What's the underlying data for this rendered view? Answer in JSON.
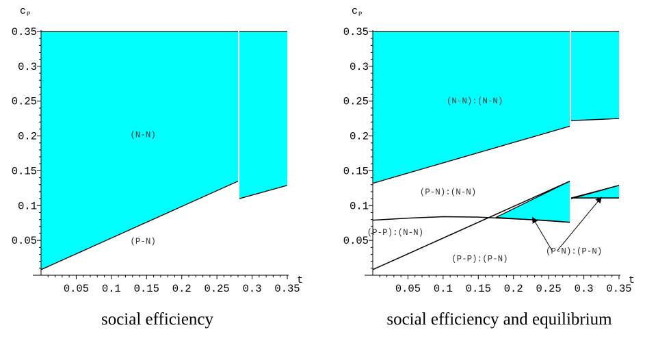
{
  "chart_data": [
    {
      "type": "area",
      "caption": "social efficiency",
      "xlabel": "t",
      "ylabel": "c",
      "ylabel_sub": "P",
      "xlim": [
        0,
        0.35
      ],
      "ylim": [
        0,
        0.35
      ],
      "xticks": [
        "0.05",
        "0.1",
        "0.15",
        "0.2",
        "0.25",
        "0.3",
        "0.35"
      ],
      "yticks": [
        "0.05",
        "0.1",
        "0.15",
        "0.2",
        "0.25",
        "0.3",
        "0.35"
      ],
      "fill_color": "#00ffff",
      "regions": [
        {
          "name": "N-N region",
          "pieces": [
            {
              "x0": 0,
              "x1": 0.28,
              "lower_start": 0.008,
              "lower_end": 0.135,
              "upper": 0.35
            },
            {
              "x0": 0.282,
              "x1": 0.35,
              "lower_start": 0.11,
              "lower_end": 0.129,
              "upper": 0.35
            }
          ]
        }
      ],
      "curves": [],
      "labels": [
        {
          "text": "(N-N)",
          "x": 0.145,
          "y": 0.198
        },
        {
          "text": "(P-N)",
          "x": 0.145,
          "y": 0.045
        }
      ],
      "arrows": []
    },
    {
      "type": "area",
      "caption": "social efficiency and equilibrium",
      "xlabel": "t",
      "ylabel": "c",
      "ylabel_sub": "P",
      "xlim": [
        0,
        0.35
      ],
      "ylim": [
        0,
        0.35
      ],
      "xticks": [
        "0.05",
        "0.1",
        "0.15",
        "0.2",
        "0.25",
        "0.3",
        "0.35"
      ],
      "yticks": [
        "0.05",
        "0.1",
        "0.15",
        "0.2",
        "0.25",
        "0.3",
        "0.35"
      ],
      "fill_color": "#00ffff",
      "regions": [
        {
          "name": "(N-N):(N-N) region",
          "pieces": [
            {
              "x0": 0,
              "x1": 0.28,
              "lower_start": 0.132,
              "lower_end": 0.214,
              "upper": 0.35
            },
            {
              "x0": 0.282,
              "x1": 0.35,
              "lower_start": 0.222,
              "lower_end": 0.225,
              "upper": 0.35
            }
          ]
        },
        {
          "name": "(P-N):(P-N) region",
          "pieces": [
            {
              "x0": 0.175,
              "x1": 0.28,
              "lower_start": 0.083,
              "lower_end": 0.076,
              "upper_start": 0.083,
              "upper_end": 0.135
            },
            {
              "x0": 0.282,
              "x1": 0.35,
              "lower_start": 0.111,
              "lower_end": 0.111,
              "upper_start": 0.111,
              "upper_end": 0.129
            }
          ]
        }
      ],
      "curves": [
        {
          "name": "lower boundary",
          "points": [
            [
              0,
              0.008
            ],
            [
              0.28,
              0.135
            ]
          ]
        },
        {
          "name": "upper flat curve",
          "points": [
            [
              0,
              0.079
            ],
            [
              0.05,
              0.082
            ],
            [
              0.1,
              0.084
            ],
            [
              0.15,
              0.0835
            ],
            [
              0.2,
              0.081
            ],
            [
              0.25,
              0.0785
            ],
            [
              0.28,
              0.076
            ]
          ]
        },
        {
          "name": "right lower segment",
          "points": [
            [
              0.282,
              0.11
            ],
            [
              0.35,
              0.129
            ]
          ]
        },
        {
          "name": "right flat segment",
          "points": [
            [
              0.282,
              0.111
            ],
            [
              0.35,
              0.111
            ]
          ]
        }
      ],
      "labels": [
        {
          "text": "(N-N):(N-N)",
          "x": 0.145,
          "y": 0.247
        },
        {
          "text": "(P-N):(N-N)",
          "x": 0.107,
          "y": 0.116
        },
        {
          "text": "(P-P):(N-N)",
          "x": 0.032,
          "y": 0.058
        },
        {
          "text": "(P-P):(P-N)",
          "x": 0.152,
          "y": 0.02
        },
        {
          "text": "(P-N):(P-N)",
          "x": 0.286,
          "y": 0.031
        }
      ],
      "arrows": [
        {
          "from": [
            0.255,
            0.035
          ],
          "to": [
            0.227,
            0.083
          ]
        },
        {
          "from": [
            0.262,
            0.035
          ],
          "to": [
            0.325,
            0.112
          ]
        }
      ]
    }
  ]
}
